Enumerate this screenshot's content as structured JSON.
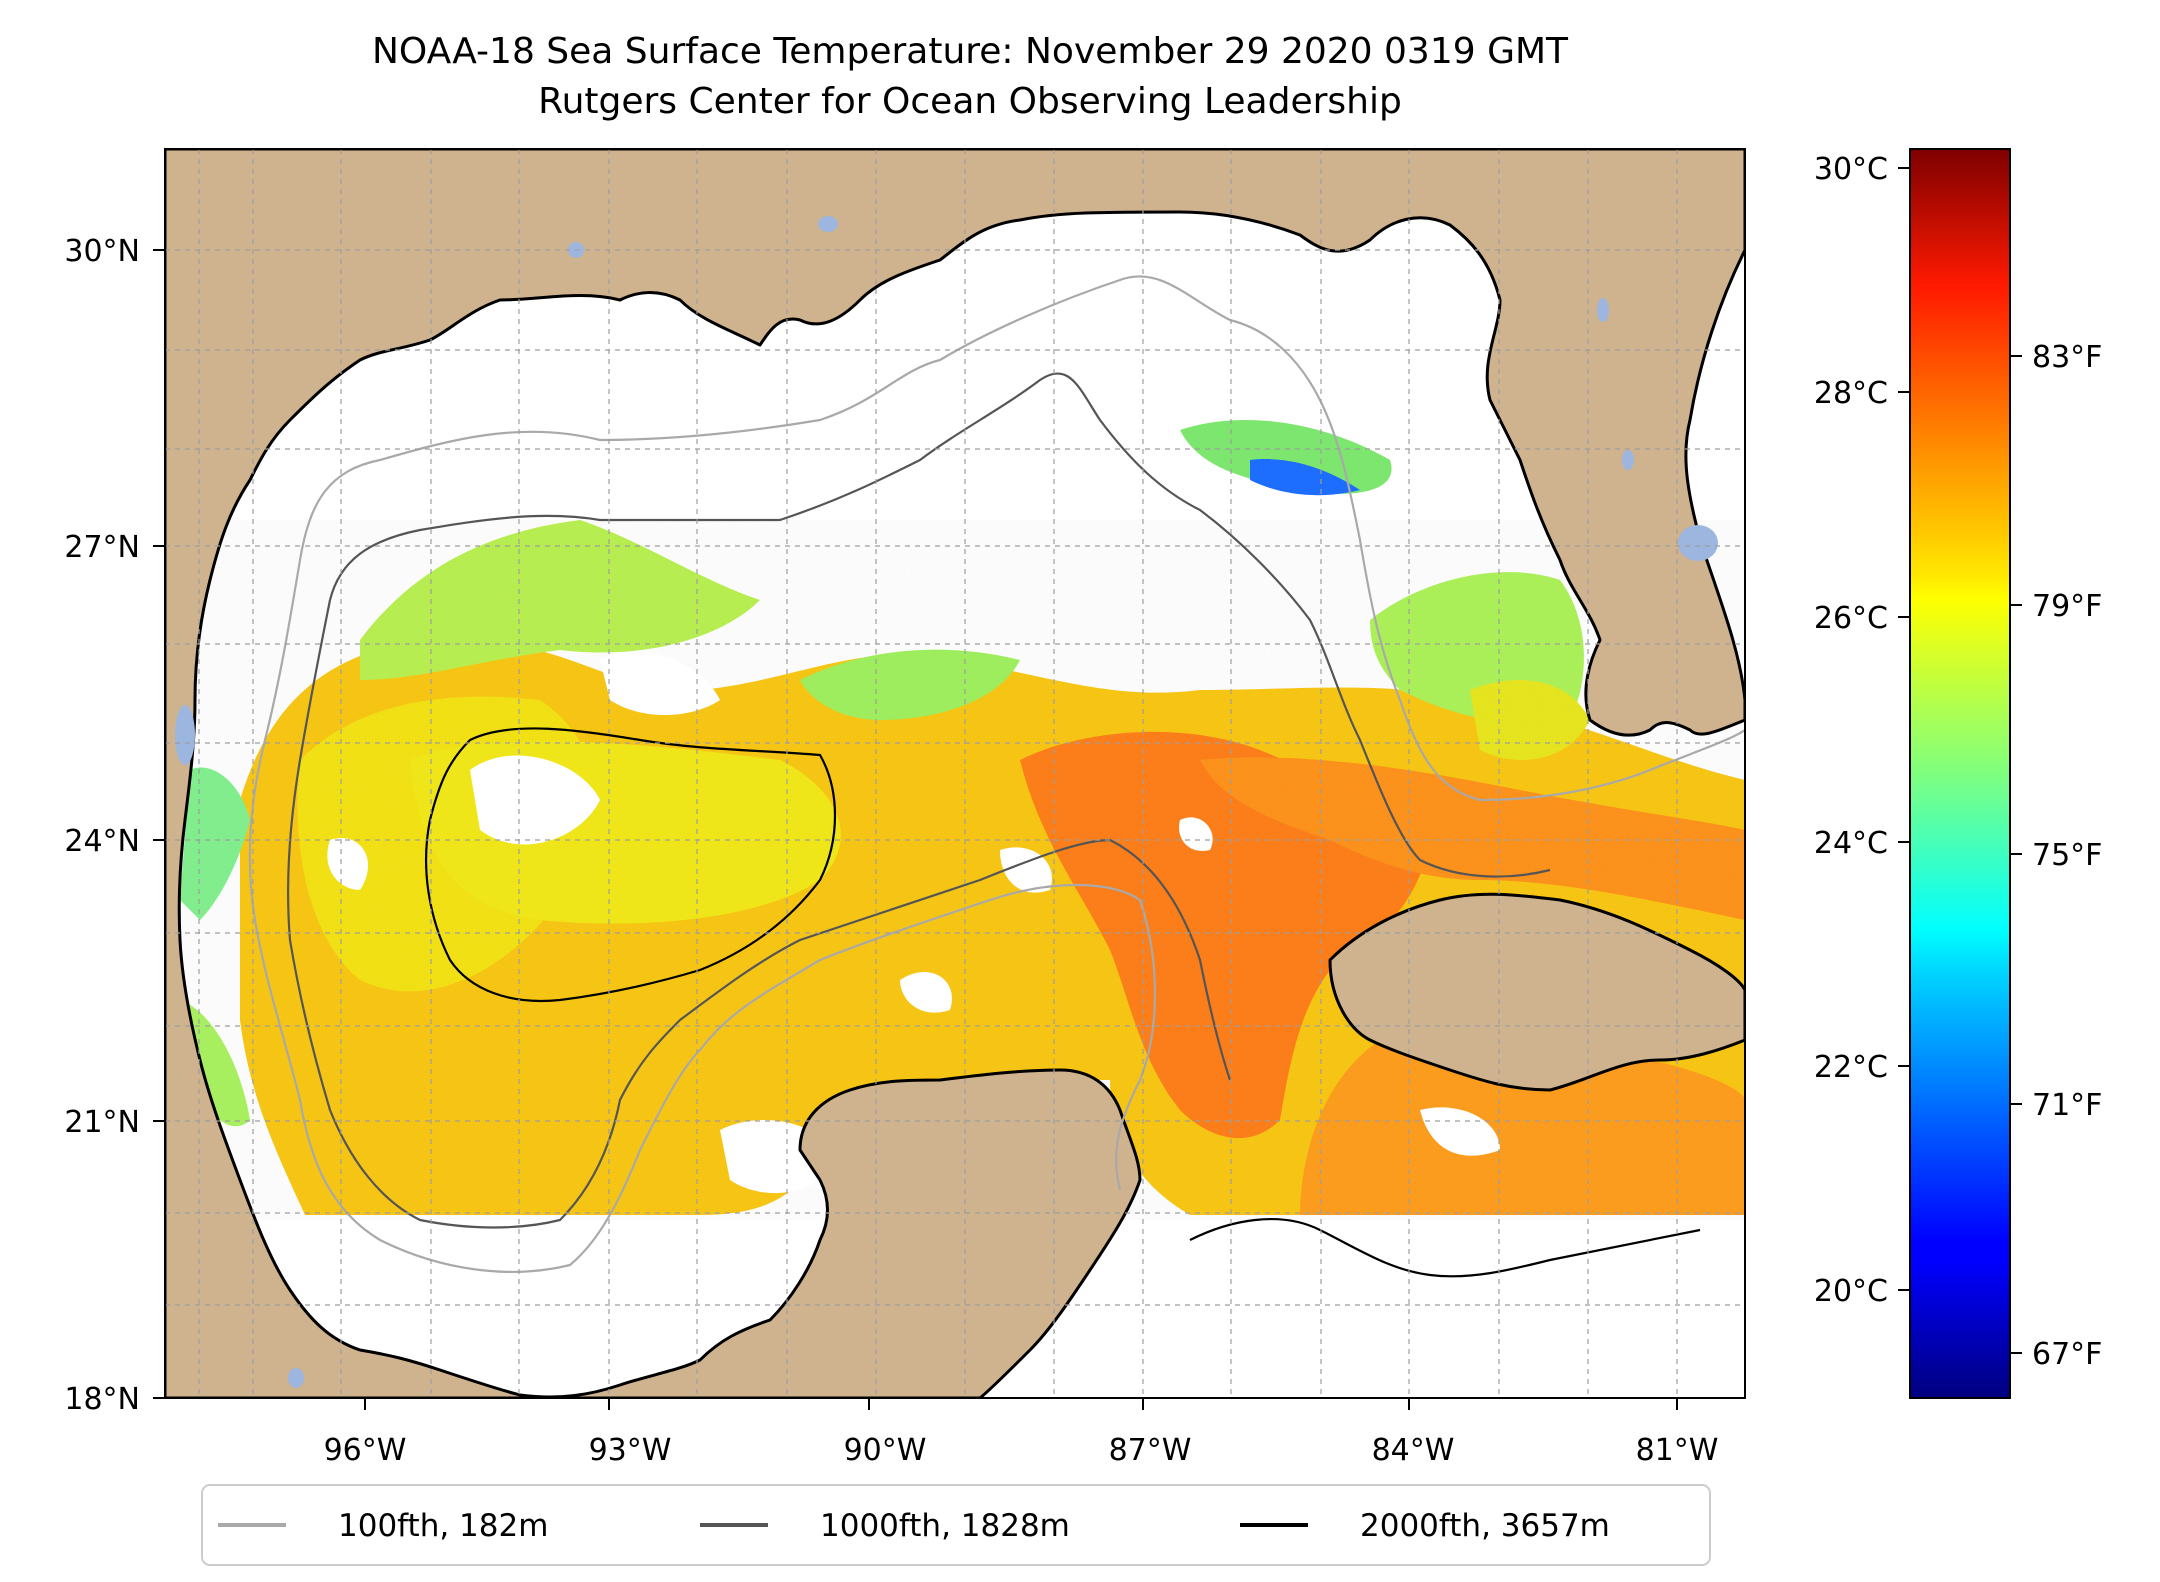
{
  "title": "NOAA-18 Sea Surface Temperature: November 29 2020 0319 GMT",
  "subtitle": "Rutgers Center for Ocean Observing Leadership",
  "map": {
    "region": "Gulf of Mexico",
    "lon_range": [
      -98,
      -80.3
    ],
    "lat_range": [
      18,
      31
    ],
    "gridlines": true,
    "land_color": "#cfb28e",
    "lake_color": "#9db6e0",
    "no_data_color": "#ffffff",
    "lon_ticks": [
      "96°W",
      "93°W",
      "90°W",
      "87°W",
      "84°W",
      "81°W"
    ],
    "lat_ticks": [
      "18°N",
      "21°N",
      "24°N",
      "27°N",
      "30°N"
    ]
  },
  "colorbar": {
    "colormap": "jet",
    "celsius_ticks": [
      "20°C",
      "22°C",
      "24°C",
      "26°C",
      "28°C",
      "30°C"
    ],
    "fahrenheit_ticks": [
      "67°F",
      "71°F",
      "75°F",
      "79°F",
      "83°F"
    ]
  },
  "legend": [
    {
      "label": "100fth, 182m",
      "color": "#a9a9a9"
    },
    {
      "label": "1000fth, 1828m",
      "color": "#555555"
    },
    {
      "label": "2000fth, 3657m",
      "color": "#000000"
    }
  ]
}
